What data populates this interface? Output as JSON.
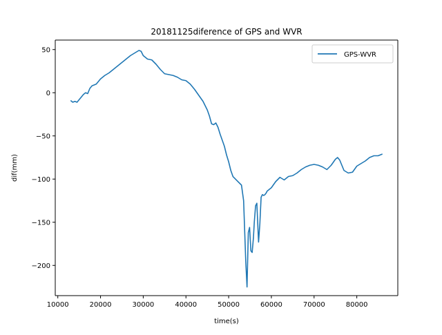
{
  "chart_data": {
    "type": "line",
    "title": "20181125diference of GPS and WVR",
    "xlabel": "time(s)",
    "ylabel": "dif(mm)",
    "xlim": [
      9400,
      89600
    ],
    "ylim": [
      -235,
      61
    ],
    "xticks": [
      10000,
      20000,
      30000,
      40000,
      50000,
      60000,
      70000,
      80000
    ],
    "xtick_labels": [
      "10000",
      "20000",
      "30000",
      "40000",
      "50000",
      "60000",
      "70000",
      "80000"
    ],
    "yticks": [
      50,
      0,
      -50,
      -100,
      -150,
      -200
    ],
    "ytick_labels": [
      "50",
      "0",
      "−50",
      "−100",
      "−150",
      "−200"
    ],
    "grid": false,
    "legend_position": "top-right",
    "series": [
      {
        "name": "GPS-WVR",
        "color": "#1f77b4",
        "x": [
          13000,
          13500,
          14000,
          14500,
          15000,
          15500,
          16000,
          16500,
          17000,
          17500,
          18000,
          19000,
          20000,
          21000,
          22000,
          23000,
          24000,
          25000,
          26000,
          27000,
          28000,
          29000,
          29500,
          30000,
          31000,
          32000,
          33000,
          34000,
          35000,
          36000,
          37000,
          38000,
          39000,
          40000,
          41000,
          42000,
          43000,
          44000,
          45000,
          45500,
          46000,
          46500,
          47000,
          47500,
          48000,
          48500,
          49000,
          49500,
          50000,
          50500,
          51000,
          52000,
          53000,
          53500,
          54000,
          54300,
          54600,
          54900,
          55200,
          55500,
          55800,
          56000,
          56300,
          56600,
          57000,
          57300,
          57600,
          57900,
          58200,
          58500,
          58800,
          59000,
          59500,
          60000,
          61000,
          62000,
          63000,
          64000,
          65000,
          66000,
          67000,
          68000,
          69000,
          70000,
          71000,
          72000,
          73000,
          74000,
          75000,
          75500,
          76000,
          77000,
          78000,
          79000,
          80000,
          81000,
          82000,
          83000,
          84000,
          85000,
          86000
        ],
        "y": [
          -9,
          -11,
          -10,
          -11,
          -8,
          -5,
          -2,
          0,
          -1,
          5,
          8,
          10,
          16,
          20,
          23,
          27,
          31,
          35,
          39,
          43,
          46,
          49,
          48,
          43,
          39,
          38,
          33,
          27,
          22,
          21,
          20,
          18,
          15,
          14,
          10,
          4,
          -3,
          -10,
          -20,
          -27,
          -36,
          -37,
          -35,
          -40,
          -48,
          -55,
          -62,
          -72,
          -80,
          -90,
          -97,
          -102,
          -107,
          -125,
          -195,
          -225,
          -162,
          -156,
          -183,
          -185,
          -168,
          -150,
          -131,
          -128,
          -173,
          -152,
          -121,
          -118,
          -119,
          -118,
          -116,
          -114,
          -112,
          -110,
          -103,
          -98,
          -101,
          -97,
          -96,
          -93,
          -89,
          -86,
          -84,
          -83,
          -84,
          -86,
          -89,
          -84,
          -77,
          -75,
          -78,
          -90,
          -93,
          -92,
          -85,
          -82,
          -79,
          -75,
          -73,
          -73,
          -71
        ]
      }
    ]
  }
}
